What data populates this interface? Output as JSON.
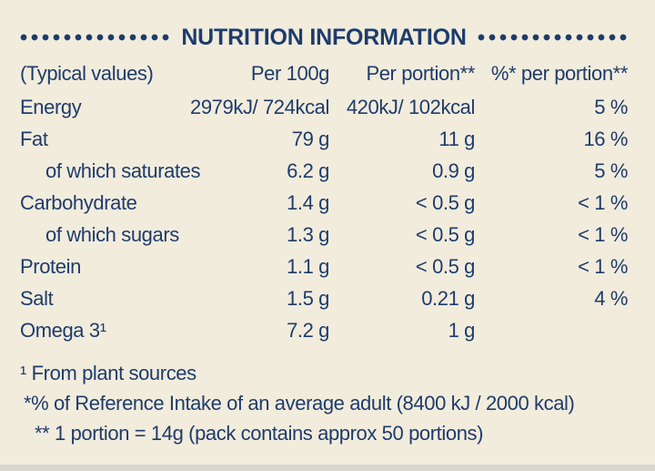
{
  "panel": {
    "title": "NUTRITION INFORMATION",
    "columns": [
      "(Typical values)",
      "Per 100g",
      "Per portion**",
      "%* per portion**"
    ],
    "rows": [
      {
        "label": "Energy",
        "indent": false,
        "per100g": "2979kJ/ 724kcal",
        "per_portion": "420kJ/ 102kcal",
        "pct_per_portion": "5 %"
      },
      {
        "label": "Fat",
        "indent": false,
        "per100g": "79 g",
        "per_portion": "11 g",
        "pct_per_portion": "16 %"
      },
      {
        "label": "of which saturates",
        "indent": true,
        "per100g": "6.2 g",
        "per_portion": "0.9 g",
        "pct_per_portion": "5 %"
      },
      {
        "label": "Carbohydrate",
        "indent": false,
        "per100g": "1.4 g",
        "per_portion": "< 0.5 g",
        "pct_per_portion": "< 1 %"
      },
      {
        "label": "of which sugars",
        "indent": true,
        "per100g": "1.3 g",
        "per_portion": "< 0.5 g",
        "pct_per_portion": "< 1 %"
      },
      {
        "label": "Protein",
        "indent": false,
        "per100g": "1.1 g",
        "per_portion": "< 0.5 g",
        "pct_per_portion": "< 1 %"
      },
      {
        "label": "Salt",
        "indent": false,
        "per100g": "1.5 g",
        "per_portion": "0.21 g",
        "pct_per_portion": "4 %"
      },
      {
        "label": "Omega 3¹",
        "indent": false,
        "per100g": "7.2 g",
        "per_portion": "1 g",
        "pct_per_portion": ""
      }
    ],
    "footnotes": [
      "¹ From plant sources",
      "*% of Reference Intake of an average adult (8400 kJ / 2000 kcal)",
      "** 1 portion = 14g (pack contains approx 50 portions)"
    ],
    "colors": {
      "background": "#f2ecdd",
      "text": "#1e3c6b"
    }
  }
}
